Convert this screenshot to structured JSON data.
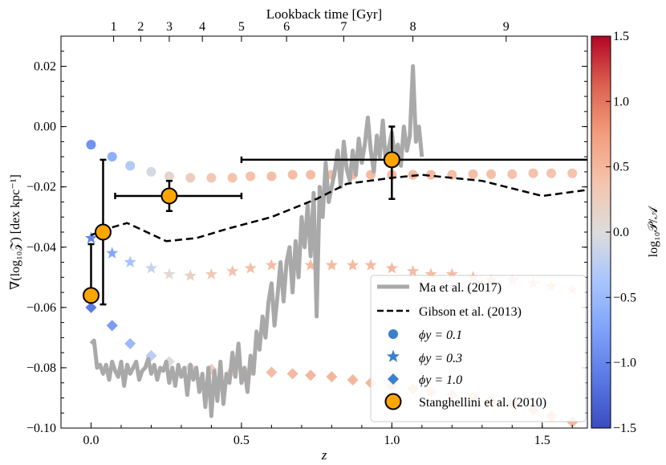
{
  "chart_data": {
    "type": "scatter",
    "xlabel": "z",
    "ylabel": "∇(log₁₀𝒵) [dex kpc⁻¹]",
    "top_axis_label": "Lookback time [Gyr]",
    "colorbar_label": "log₁₀𝒫/𝒜",
    "xlim": [
      -0.1,
      1.65
    ],
    "ylim": [
      -0.1,
      0.03
    ],
    "x_ticks": [
      0.0,
      0.5,
      1.0,
      1.5
    ],
    "x_tick_labels": [
      "0.0",
      "0.5",
      "1.0",
      "1.5"
    ],
    "y_ticks": [
      -0.1,
      -0.08,
      -0.06,
      -0.04,
      -0.02,
      0.0,
      0.02
    ],
    "y_tick_labels": [
      "−0.10",
      "−0.08",
      "−0.06",
      "−0.04",
      "−0.02",
      "0.00",
      "0.02"
    ],
    "top_ticks": [
      {
        "label": "1",
        "z": 0.075
      },
      {
        "label": "2",
        "z": 0.165
      },
      {
        "label": "3",
        "z": 0.26
      },
      {
        "label": "4",
        "z": 0.37
      },
      {
        "label": "5",
        "z": 0.5
      },
      {
        "label": "6",
        "z": 0.65
      },
      {
        "label": "7",
        "z": 0.84
      },
      {
        "label": "8",
        "z": 1.07
      },
      {
        "label": "9",
        "z": 1.38
      }
    ],
    "colorbar": {
      "range": [
        -1.5,
        1.5
      ],
      "ticks": [
        -1.5,
        -1.0,
        -0.5,
        0.0,
        0.5,
        1.0,
        1.5
      ],
      "tick_labels": [
        "−1.5",
        "−1.0",
        "−0.5",
        "0.0",
        "0.5",
        "1.0",
        "1.5"
      ],
      "cmap": "coolwarm"
    },
    "series": [
      {
        "name": "Ma et al. (2017)",
        "label": "Ma et al. (2017)",
        "style": "solid-line",
        "color": "#a9a9a9",
        "x": [
          0.0,
          0.01,
          0.02,
          0.03,
          0.04,
          0.05,
          0.06,
          0.07,
          0.08,
          0.09,
          0.1,
          0.11,
          0.12,
          0.13,
          0.14,
          0.15,
          0.16,
          0.17,
          0.18,
          0.19,
          0.2,
          0.21,
          0.22,
          0.23,
          0.24,
          0.25,
          0.26,
          0.27,
          0.28,
          0.29,
          0.3,
          0.31,
          0.32,
          0.33,
          0.34,
          0.35,
          0.36,
          0.37,
          0.38,
          0.39,
          0.4,
          0.41,
          0.42,
          0.43,
          0.44,
          0.45,
          0.46,
          0.47,
          0.48,
          0.49,
          0.5,
          0.51,
          0.52,
          0.53,
          0.54,
          0.55,
          0.56,
          0.57,
          0.58,
          0.59,
          0.6,
          0.61,
          0.62,
          0.63,
          0.64,
          0.65,
          0.66,
          0.67,
          0.68,
          0.69,
          0.7,
          0.71,
          0.72,
          0.73,
          0.74,
          0.75,
          0.76,
          0.77,
          0.78,
          0.79,
          0.8,
          0.81,
          0.82,
          0.83,
          0.84,
          0.85,
          0.86,
          0.87,
          0.88,
          0.89,
          0.9,
          0.91,
          0.92,
          0.93,
          0.94,
          0.95,
          0.96,
          0.97,
          0.98,
          0.99,
          1.0,
          1.01,
          1.02,
          1.03,
          1.04,
          1.05,
          1.06,
          1.07,
          1.08,
          1.09,
          1.1
        ],
        "y": [
          -0.072,
          -0.071,
          -0.08,
          -0.079,
          -0.082,
          -0.079,
          -0.084,
          -0.078,
          -0.081,
          -0.083,
          -0.078,
          -0.086,
          -0.079,
          -0.082,
          -0.08,
          -0.078,
          -0.084,
          -0.081,
          -0.08,
          -0.077,
          -0.082,
          -0.079,
          -0.084,
          -0.08,
          -0.081,
          -0.078,
          -0.085,
          -0.08,
          -0.086,
          -0.079,
          -0.083,
          -0.08,
          -0.089,
          -0.079,
          -0.084,
          -0.08,
          -0.088,
          -0.082,
          -0.093,
          -0.08,
          -0.096,
          -0.081,
          -0.091,
          -0.078,
          -0.092,
          -0.082,
          -0.085,
          -0.075,
          -0.083,
          -0.072,
          -0.085,
          -0.08,
          -0.088,
          -0.076,
          -0.082,
          -0.068,
          -0.074,
          -0.063,
          -0.07,
          -0.058,
          -0.052,
          -0.066,
          -0.056,
          -0.045,
          -0.058,
          -0.045,
          -0.04,
          -0.055,
          -0.038,
          -0.05,
          -0.03,
          -0.04,
          -0.026,
          -0.043,
          -0.022,
          -0.063,
          -0.02,
          -0.03,
          -0.012,
          -0.025,
          -0.02,
          -0.015,
          -0.008,
          -0.02,
          -0.005,
          -0.014,
          -0.018,
          -0.008,
          -0.016,
          -0.004,
          -0.012,
          -0.006,
          0.003,
          -0.008,
          -0.015,
          -0.003,
          -0.01,
          0.002,
          -0.012,
          -0.007,
          -0.002,
          -0.01,
          -0.006,
          -0.013,
          0.0,
          -0.008,
          -0.003,
          0.02,
          -0.005,
          0.0,
          -0.01
        ]
      },
      {
        "name": "Gibson et al. (2013)",
        "label": "Gibson et al. (2013)",
        "style": "dashed-line",
        "color": "#000000",
        "x": [
          0.0,
          0.05,
          0.12,
          0.25,
          0.35,
          0.45,
          0.6,
          0.75,
          0.85,
          1.0,
          1.1,
          1.3,
          1.5,
          1.65
        ],
        "y": [
          -0.036,
          -0.034,
          -0.032,
          -0.038,
          -0.037,
          -0.034,
          -0.03,
          -0.024,
          -0.019,
          -0.017,
          -0.016,
          -0.018,
          -0.023,
          -0.021
        ]
      },
      {
        "name": "phi_y=0.1",
        "label": "ϕy = 0.1",
        "style": "circle",
        "x": [
          0.0,
          0.07,
          0.13,
          0.2,
          0.26,
          0.33,
          0.4,
          0.47,
          0.53,
          0.6,
          0.67,
          0.73,
          0.8,
          0.87,
          0.93,
          1.0,
          1.07,
          1.13,
          1.2,
          1.27,
          1.33,
          1.4,
          1.47,
          1.53,
          1.6
        ],
        "y": [
          -0.006,
          -0.01,
          -0.013,
          -0.015,
          -0.0165,
          -0.017,
          -0.017,
          -0.017,
          -0.0165,
          -0.0165,
          -0.016,
          -0.016,
          -0.016,
          -0.016,
          -0.016,
          -0.016,
          -0.016,
          -0.016,
          -0.016,
          -0.0158,
          -0.0158,
          -0.0158,
          -0.0155,
          -0.0155,
          -0.0155
        ],
        "c": [
          -0.9,
          -0.6,
          -0.3,
          -0.05,
          0.1,
          0.25,
          0.32,
          0.38,
          0.4,
          0.42,
          0.44,
          0.45,
          0.45,
          0.45,
          0.45,
          0.45,
          0.45,
          0.44,
          0.43,
          0.42,
          0.41,
          0.4,
          0.39,
          0.38,
          0.37
        ]
      },
      {
        "name": "phi_y=0.3",
        "label": "ϕy = 0.3",
        "style": "star",
        "x": [
          0.0,
          0.07,
          0.13,
          0.2,
          0.26,
          0.33,
          0.4,
          0.47,
          0.53,
          0.6,
          0.67,
          0.73,
          0.8,
          0.87,
          0.93,
          1.0,
          1.07,
          1.13,
          1.2,
          1.27,
          1.33,
          1.4,
          1.47,
          1.53,
          1.6
        ],
        "y": [
          -0.037,
          -0.042,
          -0.045,
          -0.047,
          -0.049,
          -0.0495,
          -0.049,
          -0.048,
          -0.047,
          -0.046,
          -0.046,
          -0.046,
          -0.046,
          -0.046,
          -0.046,
          -0.047,
          -0.048,
          -0.049,
          -0.049,
          -0.05,
          -0.051,
          -0.051,
          -0.052,
          -0.053,
          -0.054
        ],
        "c": [
          -1.0,
          -0.7,
          -0.4,
          -0.15,
          0.05,
          0.2,
          0.3,
          0.38,
          0.42,
          0.45,
          0.47,
          0.48,
          0.48,
          0.48,
          0.47,
          0.47,
          0.46,
          0.45,
          0.44,
          0.43,
          0.42,
          0.41,
          0.4,
          0.39,
          0.38
        ]
      },
      {
        "name": "phi_y=1.0",
        "label": "ϕy = 1.0",
        "style": "diamond",
        "x": [
          0.0,
          0.07,
          0.13,
          0.2,
          0.26,
          0.33,
          0.4,
          0.47,
          0.53,
          0.6,
          0.67,
          0.73,
          0.8,
          0.87,
          0.93,
          1.0,
          1.07,
          1.13,
          1.2,
          1.27,
          1.33,
          1.4,
          1.47,
          1.53,
          1.6
        ],
        "y": [
          -0.06,
          -0.066,
          -0.072,
          -0.076,
          -0.078,
          -0.08,
          -0.0805,
          -0.081,
          -0.081,
          -0.0815,
          -0.082,
          -0.0825,
          -0.083,
          -0.084,
          -0.085,
          -0.086,
          -0.087,
          -0.088,
          -0.089,
          -0.09,
          -0.091,
          -0.092,
          -0.094,
          -0.096,
          -0.098
        ],
        "c": [
          -1.1,
          -0.8,
          -0.5,
          -0.25,
          0.0,
          0.15,
          0.25,
          0.35,
          0.4,
          0.45,
          0.48,
          0.5,
          0.5,
          0.5,
          0.5,
          0.5,
          0.5,
          0.5,
          0.5,
          0.5,
          0.5,
          0.5,
          0.5,
          0.5,
          0.5
        ]
      },
      {
        "name": "Stanghellini et al. (2010)",
        "label": "Stanghellini et al. (2010)",
        "style": "errorbar-circle",
        "color": "#ffa500",
        "points": [
          {
            "x": 0.0,
            "y": -0.056,
            "xerr": [
              0.0,
              0.0
            ],
            "yerr": [
              0.0,
              0.017
            ]
          },
          {
            "x": 0.04,
            "y": -0.035,
            "xerr": [
              0.0,
              0.0
            ],
            "yerr": [
              0.024,
              0.024
            ]
          },
          {
            "x": 0.26,
            "y": -0.023,
            "xerr": [
              0.18,
              0.24
            ],
            "yerr": [
              0.005,
              0.005
            ]
          },
          {
            "x": 1.0,
            "y": -0.011,
            "xerr": [
              0.5,
              0.7
            ],
            "yerr": [
              0.013,
              0.011
            ]
          }
        ]
      }
    ],
    "legend_position": "lower-right"
  }
}
